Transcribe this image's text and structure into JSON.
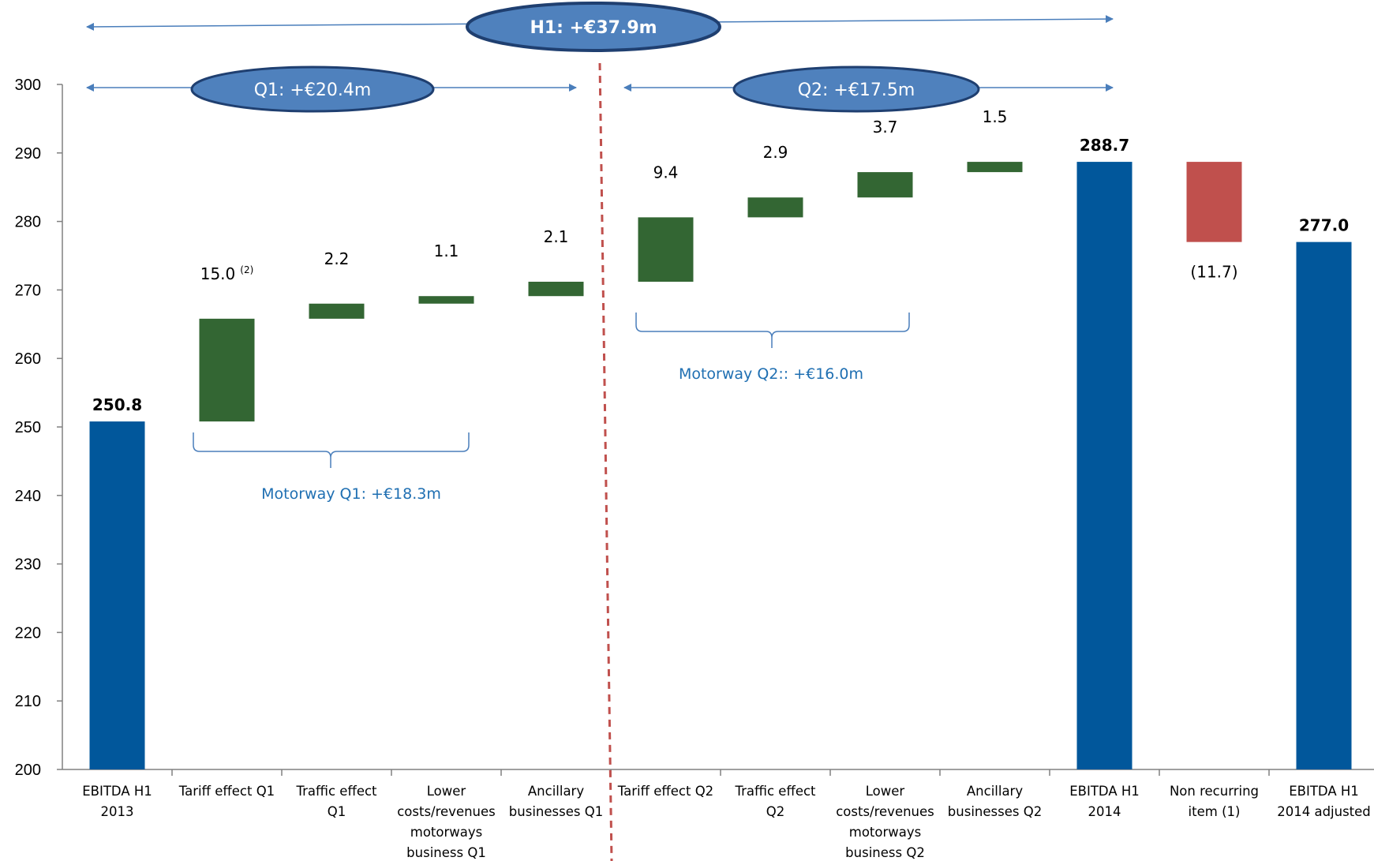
{
  "chart_data": {
    "type": "bar",
    "subtype": "waterfall",
    "title": "",
    "xlabel": "",
    "ylabel": "",
    "ylim": [
      200,
      300
    ],
    "yticks": [
      200,
      210,
      220,
      230,
      240,
      250,
      260,
      270,
      280,
      290,
      300
    ],
    "grid": false,
    "categories": [
      [
        "EBITDA H1",
        "2013"
      ],
      [
        "Tariff effect Q1"
      ],
      [
        "Traffic effect",
        "Q1"
      ],
      [
        "Lower",
        "costs/revenues",
        "motorways",
        "business Q1"
      ],
      [
        "Ancillary",
        "businesses Q1"
      ],
      [
        "Tariff effect Q2"
      ],
      [
        "Traffic effect",
        "Q2"
      ],
      [
        "Lower",
        "costs/revenues",
        "motorways",
        "business Q2"
      ],
      [
        "Ancillary",
        "businesses Q2"
      ],
      [
        "EBITDA H1",
        "2014"
      ],
      [
        "Non recurring",
        "item (1)"
      ],
      [
        "EBITDA H1",
        "2014 adjusted"
      ]
    ],
    "bars": [
      {
        "kind": "total",
        "start": 200,
        "end": 250.8,
        "label": "250.8",
        "sup": ""
      },
      {
        "kind": "increase",
        "start": 250.8,
        "end": 265.8,
        "label": "15.0",
        "sup": "(2)"
      },
      {
        "kind": "increase",
        "start": 265.8,
        "end": 268.0,
        "label": "2.2",
        "sup": ""
      },
      {
        "kind": "increase",
        "start": 268.0,
        "end": 269.1,
        "label": "1.1",
        "sup": ""
      },
      {
        "kind": "increase",
        "start": 269.1,
        "end": 271.2,
        "label": "2.1",
        "sup": ""
      },
      {
        "kind": "increase",
        "start": 271.2,
        "end": 280.6,
        "label": "9.4",
        "sup": ""
      },
      {
        "kind": "increase",
        "start": 280.6,
        "end": 283.5,
        "label": "2.9",
        "sup": ""
      },
      {
        "kind": "increase",
        "start": 283.5,
        "end": 287.2,
        "label": "3.7",
        "sup": ""
      },
      {
        "kind": "increase",
        "start": 287.2,
        "end": 288.7,
        "label": "1.5",
        "sup": ""
      },
      {
        "kind": "total",
        "start": 200,
        "end": 288.7,
        "label": "288.7",
        "sup": ""
      },
      {
        "kind": "decrease",
        "start": 288.7,
        "end": 277.0,
        "label": "(11.7)",
        "sup": ""
      },
      {
        "kind": "total",
        "start": 200,
        "end": 277.0,
        "label": "277.0",
        "sup": ""
      }
    ],
    "colors": {
      "total": "#01579b",
      "increase": "#336633",
      "decrease": "#c0504d",
      "divider": "#c0504d",
      "bubble_fill": "#4f81bd",
      "bubble_stroke": "#1f3f70",
      "arrow": "#4a7ebb",
      "bracket": "#4a7ebb",
      "bracket_text": "#1f6fb2"
    },
    "annotations": {
      "h1_label": "H1: +€37.9m",
      "q1_label": "Q1: +€20.4m",
      "q2_label": "Q2: +€17.5m",
      "bracket_q1_label": "Motorway Q1: +€18.3m",
      "bracket_q2_label": "Motorway Q2:: +€16.0m"
    }
  }
}
